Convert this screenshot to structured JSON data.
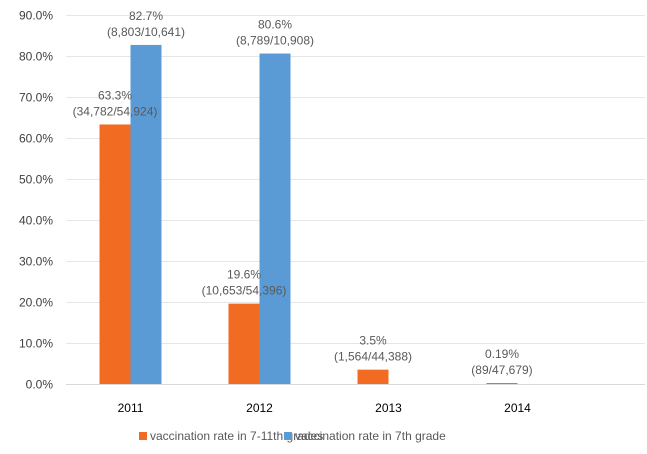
{
  "chart_data": {
    "type": "bar",
    "title": "",
    "xlabel": "",
    "ylabel": "",
    "ylim": [
      0,
      0.9
    ],
    "y_ticks": [
      "0.0%",
      "10.0%",
      "20.0%",
      "30.0%",
      "40.0%",
      "50.0%",
      "60.0%",
      "70.0%",
      "80.0%",
      "90.0%"
    ],
    "y_tick_values": [
      0,
      0.1,
      0.2,
      0.3,
      0.4,
      0.5,
      0.6,
      0.7,
      0.8,
      0.9
    ],
    "grid": true,
    "legend_position": "bottom",
    "categories": [
      "2011",
      "2012",
      "2013",
      "2014"
    ],
    "series": [
      {
        "name": "vaccination rate in 7-11th grades",
        "color": "#F26B22",
        "values": [
          0.633,
          0.196,
          0.035,
          0.0019
        ],
        "labels": [
          "63.3%",
          "19.6%",
          "3.5%",
          "0.19%"
        ],
        "sublabels": [
          "(34,782/54,924)",
          "(10,653/54,396)",
          "(1,564/44,388)",
          "(89/47,679)"
        ]
      },
      {
        "name": "vaccination rate in 7th grade",
        "color": "#5B9BD5",
        "values": [
          0.827,
          0.806,
          null,
          null
        ],
        "labels": [
          "82.7%",
          "80.6%",
          null,
          null
        ],
        "sublabels": [
          "(8,803/10,641)",
          "(8,789/10,908)",
          null,
          null
        ]
      }
    ]
  }
}
